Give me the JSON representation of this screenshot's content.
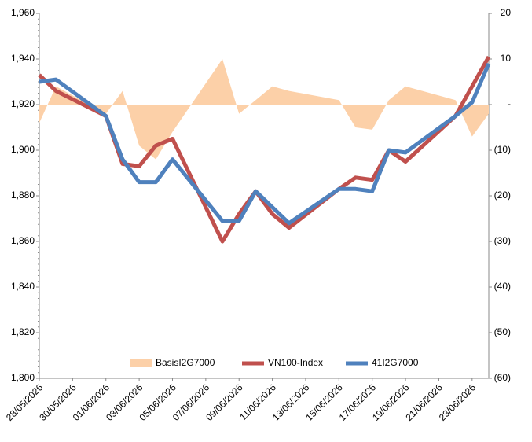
{
  "chart_data": {
    "type": "combo",
    "x": [
      "28/05/2026",
      "29/05/2026",
      "01/06/2026",
      "02/06/2026",
      "03/06/2026",
      "04/06/2026",
      "05/06/2026",
      "08/06/2026",
      "09/06/2026",
      "10/06/2026",
      "11/06/2026",
      "12/06/2026",
      "15/06/2026",
      "16/06/2026",
      "17/06/2026",
      "18/06/2026",
      "19/06/2026",
      "22/06/2026",
      "23/06/2026",
      "24/06/2026"
    ],
    "xlim": [
      "28/05/2026",
      "24/06/2026"
    ],
    "xticks": [
      "28/05/2026",
      "30/05/2026",
      "01/06/2026",
      "03/06/2026",
      "05/06/2026",
      "07/06/2026",
      "09/06/2026",
      "11/06/2026",
      "13/06/2026",
      "15/06/2026",
      "17/06/2026",
      "19/06/2026",
      "21/06/2026",
      "23/06/2026"
    ],
    "ylim": [
      1800,
      1960
    ],
    "yticks": [
      {
        "value": 1800,
        "label": "1,800"
      },
      {
        "value": 1820,
        "label": "1,820"
      },
      {
        "value": 1840,
        "label": "1,840"
      },
      {
        "value": 1860,
        "label": "1,860"
      },
      {
        "value": 1880,
        "label": "1,880"
      },
      {
        "value": 1900,
        "label": "1,900"
      },
      {
        "value": 1920,
        "label": "1,920"
      },
      {
        "value": 1940,
        "label": "1,940"
      },
      {
        "value": 1960,
        "label": "1,960"
      }
    ],
    "y2lim": [
      -60,
      20
    ],
    "y2ticks": [
      {
        "value": -60,
        "label": "(60)"
      },
      {
        "value": -50,
        "label": "(50)"
      },
      {
        "value": -40,
        "label": "(40)"
      },
      {
        "value": -30,
        "label": "(30)"
      },
      {
        "value": -20,
        "label": "(20)"
      },
      {
        "value": -10,
        "label": "(10)"
      },
      {
        "value": 0,
        "label": "-"
      },
      10,
      20
    ],
    "legend": "bottom",
    "series": [
      {
        "name": "BasisI2G7000",
        "type": "area",
        "axis": "y2",
        "color": "#fcd0a8",
        "values": [
          -4,
          4,
          -2,
          3,
          -9,
          -12,
          -6,
          10,
          -2,
          1,
          4,
          3,
          1,
          -5,
          -5.5,
          1,
          4,
          1,
          -7,
          -2
        ]
      },
      {
        "name": "VN100-Index",
        "type": "line",
        "color": "#c0504d",
        "values": [
          1933,
          1926,
          1915,
          1894,
          1893,
          1902,
          1905,
          1860,
          1872,
          1882,
          1872,
          1866,
          1883,
          1888,
          1887,
          1900,
          1895,
          1915,
          1928,
          1941
        ]
      },
      {
        "name": "41I2G7000",
        "type": "line",
        "color": "#4f81bd",
        "values": [
          1930,
          1931,
          1915,
          1896,
          1886,
          1886,
          1896,
          1869,
          1869,
          1882,
          1875,
          1868,
          1883,
          1883,
          1882,
          1900,
          1899,
          1915,
          1921,
          1938
        ]
      }
    ]
  }
}
